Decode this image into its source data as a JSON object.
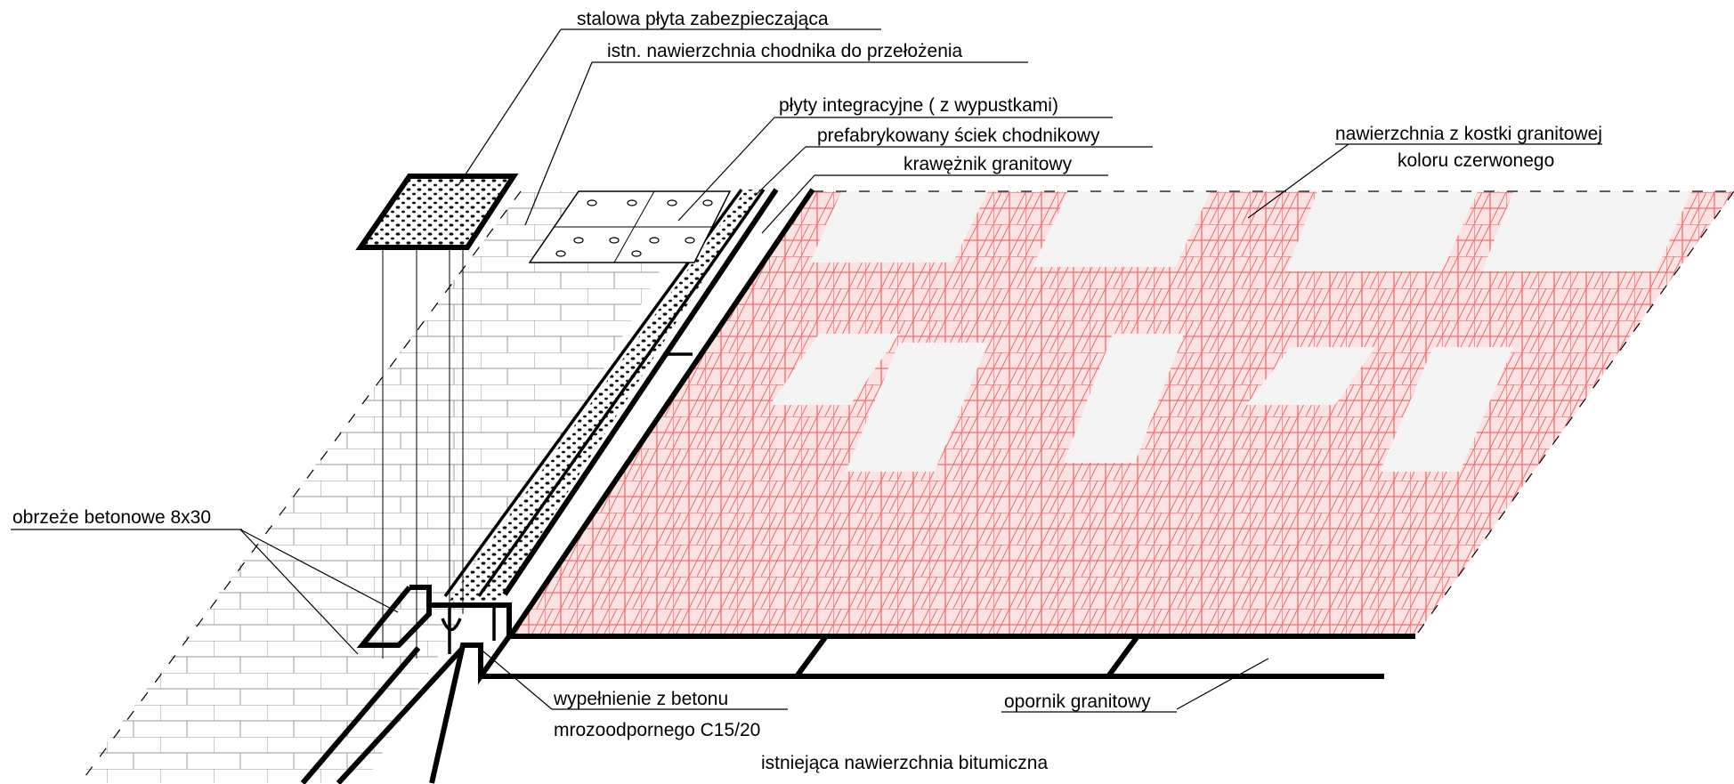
{
  "labels": {
    "steel_plate": "stalowa płyta zabezpieczająca",
    "existing_sidewalk": "istn. nawierzchnia chodnika do przełożenia",
    "integration_plates": "płyty integracyjne ( z wypustkami)",
    "prefab_gutter": "prefabrykowany ściek chodnikowy",
    "granite_curb": "krawężnik granitowy",
    "granite_paving_line1": "nawierzchnia z kostki granitowej",
    "granite_paving_line2": "koloru czerwonego",
    "concrete_edging": "obrzeże betonowe 8x30",
    "concrete_fill_line1": "wypełnienie z betonu",
    "concrete_fill_line2": "mrozoodpornego C15/20",
    "granite_stop": "opornik granitowy",
    "existing_bitumen": "istniejąca nawierzchnia bitumiczna"
  },
  "colors": {
    "paving_grid": "#f26b6b",
    "paving_fill": "#fbe3e3",
    "light_patch": "#f4f4f4",
    "line": "#000000",
    "brick_line": "#888888"
  }
}
